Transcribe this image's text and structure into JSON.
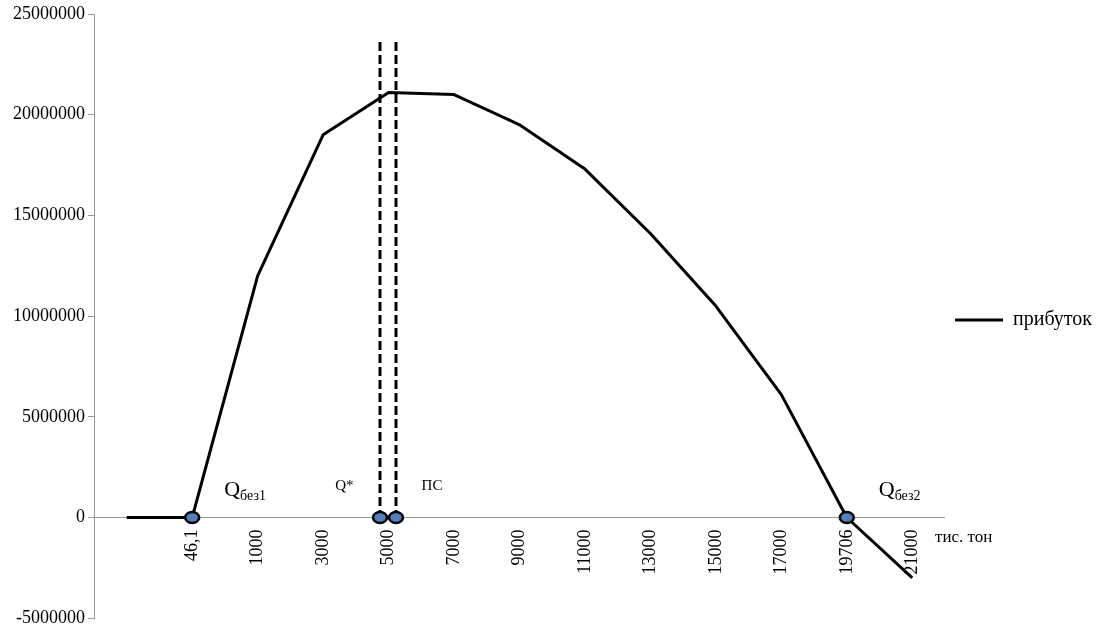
{
  "chart_data": {
    "type": "line",
    "xlabel": "тис. тон",
    "categories": [
      null,
      "46,1",
      "1000",
      "3000",
      "5000",
      "7000",
      "9000",
      "11000",
      "13000",
      "15000",
      "17000",
      "19706",
      "21000"
    ],
    "series": [
      {
        "name": "прибуток",
        "color": "#000000",
        "values": [
          0,
          0,
          12000000,
          19000000,
          21100000,
          21000000,
          19500000,
          17300000,
          14100000,
          10500000,
          6100000,
          0,
          -3000000
        ]
      }
    ],
    "ylim": [
      -5000000,
      25000000
    ],
    "yticks": [
      -5000000,
      0,
      5000000,
      10000000,
      15000000,
      20000000,
      25000000
    ],
    "annotations": [
      {
        "text": "Q$_{без1}$",
        "x": "46,1",
        "y": 0
      },
      "Q*",
      "ПС",
      {
        "text": "Q$_{без2}$",
        "x": "19706",
        "y": 0
      }
    ],
    "grid": false,
    "legend": "right",
    "marker": "none",
    "line_style": "solid"
  }
}
